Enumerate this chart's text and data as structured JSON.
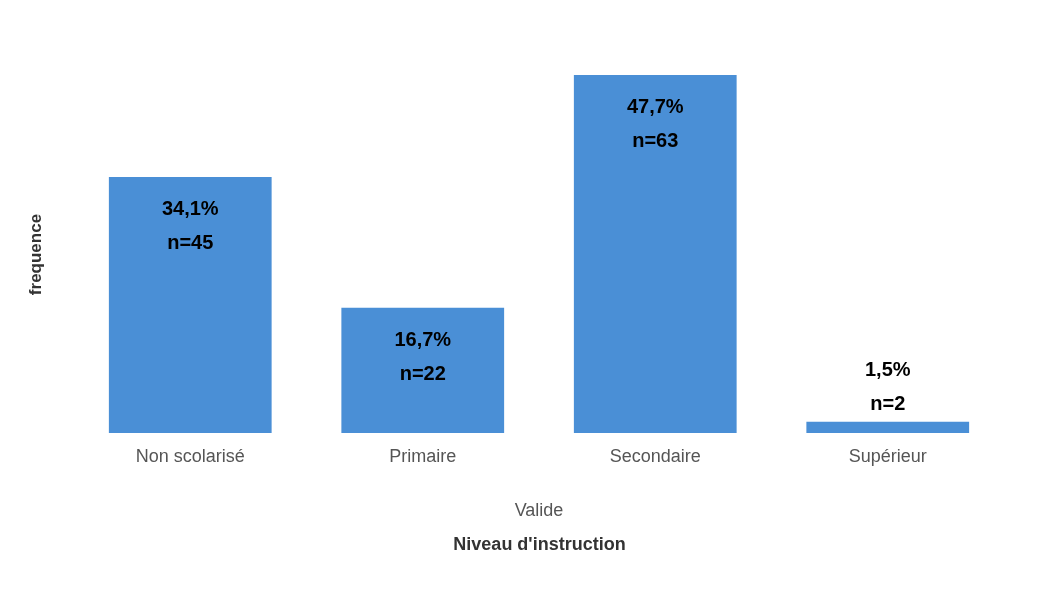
{
  "chart_data": {
    "type": "bar",
    "categories": [
      "Non scolarisé",
      "Primaire",
      "Secondaire",
      "Supérieur"
    ],
    "values": [
      34.1,
      16.7,
      47.7,
      1.5
    ],
    "value_labels": [
      "34,1%\nn=45",
      "16,7%\nn=22",
      "47,7%\nn=63",
      "1,5%\nn=2"
    ],
    "color": "#4a8fd6",
    "xlabel": "Niveau d'instruction",
    "ylabel": "frequence",
    "annotations": [
      "Valide"
    ],
    "grid": false
  }
}
